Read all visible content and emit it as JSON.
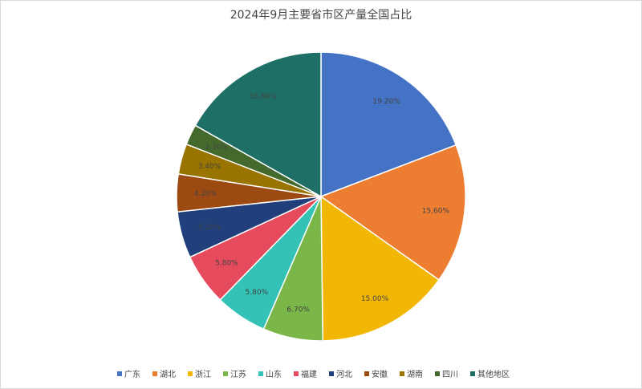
{
  "chart_data": {
    "type": "pie",
    "title": "2024年9月主要省市区产量全国占比",
    "categories": [
      "广东",
      "湖北",
      "浙江",
      "江苏",
      "山东",
      "福建",
      "河北",
      "安徽",
      "湖南",
      "四川",
      "其他地区"
    ],
    "values": [
      19.2,
      15.6,
      15.0,
      6.7,
      5.8,
      5.8,
      5.2,
      4.2,
      3.4,
      2.3,
      16.8
    ],
    "value_labels": [
      "19.20%",
      "15.60%",
      "15.00%",
      "6.70%",
      "5.80%",
      "5.80%",
      "5.20%",
      "4.20%",
      "3.40%",
      "2.30%",
      "16.80%"
    ],
    "colors": [
      "#4472c4",
      "#ed7d31",
      "#f2b705",
      "#7ab648",
      "#33c2b5",
      "#e54b5c",
      "#203f7b",
      "#9c4a12",
      "#9a7400",
      "#436a2c",
      "#1e6f66"
    ],
    "legend": "bottom"
  }
}
